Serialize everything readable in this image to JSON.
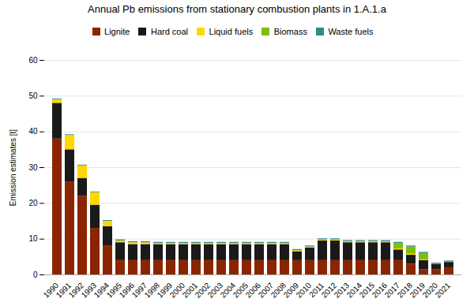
{
  "chart_data": {
    "type": "bar",
    "stacked": true,
    "title": "Annual Pb emissions from stationary combustion plants in 1.A.1.a",
    "ylabel": "Emission estimates [t]",
    "categories": [
      "1990",
      "1991",
      "1992",
      "1993",
      "1994",
      "1995",
      "1996",
      "1997",
      "1998",
      "1999",
      "2000",
      "2001",
      "2002",
      "2003",
      "2004",
      "2005",
      "2006",
      "2007",
      "2008",
      "2009",
      "2010",
      "2011",
      "2012",
      "2013",
      "2014",
      "2015",
      "2016",
      "2017",
      "2018",
      "2019",
      "2020",
      "2021"
    ],
    "series": [
      {
        "name": "Lignite",
        "color": "#8B2500",
        "values": [
          38.0,
          26.0,
          22.0,
          13.0,
          8.0,
          4.0,
          4.0,
          4.0,
          4.0,
          4.0,
          4.0,
          4.0,
          4.0,
          4.0,
          4.0,
          4.0,
          4.0,
          4.0,
          4.0,
          4.0,
          4.0,
          4.0,
          4.0,
          4.0,
          4.0,
          4.0,
          4.0,
          4.0,
          3.0,
          1.5,
          1.5,
          2.0
        ]
      },
      {
        "name": "Hard coal",
        "color": "#1a1a1a",
        "values": [
          10.0,
          9.0,
          5.0,
          6.5,
          5.5,
          5.0,
          4.5,
          4.5,
          4.5,
          4.5,
          4.5,
          4.5,
          4.5,
          4.5,
          4.5,
          4.5,
          4.5,
          4.5,
          4.5,
          2.5,
          3.5,
          5.5,
          5.5,
          5.0,
          5.0,
          5.0,
          5.0,
          3.0,
          2.5,
          2.5,
          1.5,
          1.5
        ]
      },
      {
        "name": "Liquid fuels",
        "color": "#FFD700",
        "values": [
          1.0,
          4.0,
          3.5,
          3.5,
          1.5,
          0.5,
          0.5,
          0.5,
          0.3,
          0.3,
          0.3,
          0.3,
          0.3,
          0.3,
          0.3,
          0.3,
          0.3,
          0.3,
          0.3,
          0.3,
          0.3,
          0.3,
          0.3,
          0.3,
          0.3,
          0.3,
          0.3,
          0.3,
          0.3,
          0.2,
          0.1,
          0.1
        ]
      },
      {
        "name": "Biomass",
        "color": "#7FBF00",
        "values": [
          0.0,
          0.0,
          0.0,
          0.0,
          0.0,
          0.0,
          0.0,
          0.0,
          0.0,
          0.0,
          0.0,
          0.0,
          0.0,
          0.0,
          0.0,
          0.0,
          0.0,
          0.0,
          0.0,
          0.0,
          0.0,
          0.0,
          0.0,
          0.0,
          0.0,
          0.0,
          0.0,
          1.5,
          2.0,
          1.8,
          0.0,
          0.0
        ]
      },
      {
        "name": "Waste fuels",
        "color": "#2E8B8B",
        "values": [
          0.2,
          0.2,
          0.2,
          0.2,
          0.2,
          0.3,
          0.3,
          0.3,
          0.3,
          0.3,
          0.3,
          0.3,
          0.3,
          0.3,
          0.3,
          0.3,
          0.3,
          0.3,
          0.3,
          0.3,
          0.3,
          0.3,
          0.3,
          0.3,
          0.3,
          0.3,
          0.3,
          0.3,
          0.3,
          0.3,
          0.2,
          0.3
        ]
      }
    ],
    "ylim": [
      0,
      60
    ],
    "yticks": [
      0,
      10,
      20,
      30,
      40,
      50,
      60
    ],
    "grid": true,
    "legend": "top"
  }
}
